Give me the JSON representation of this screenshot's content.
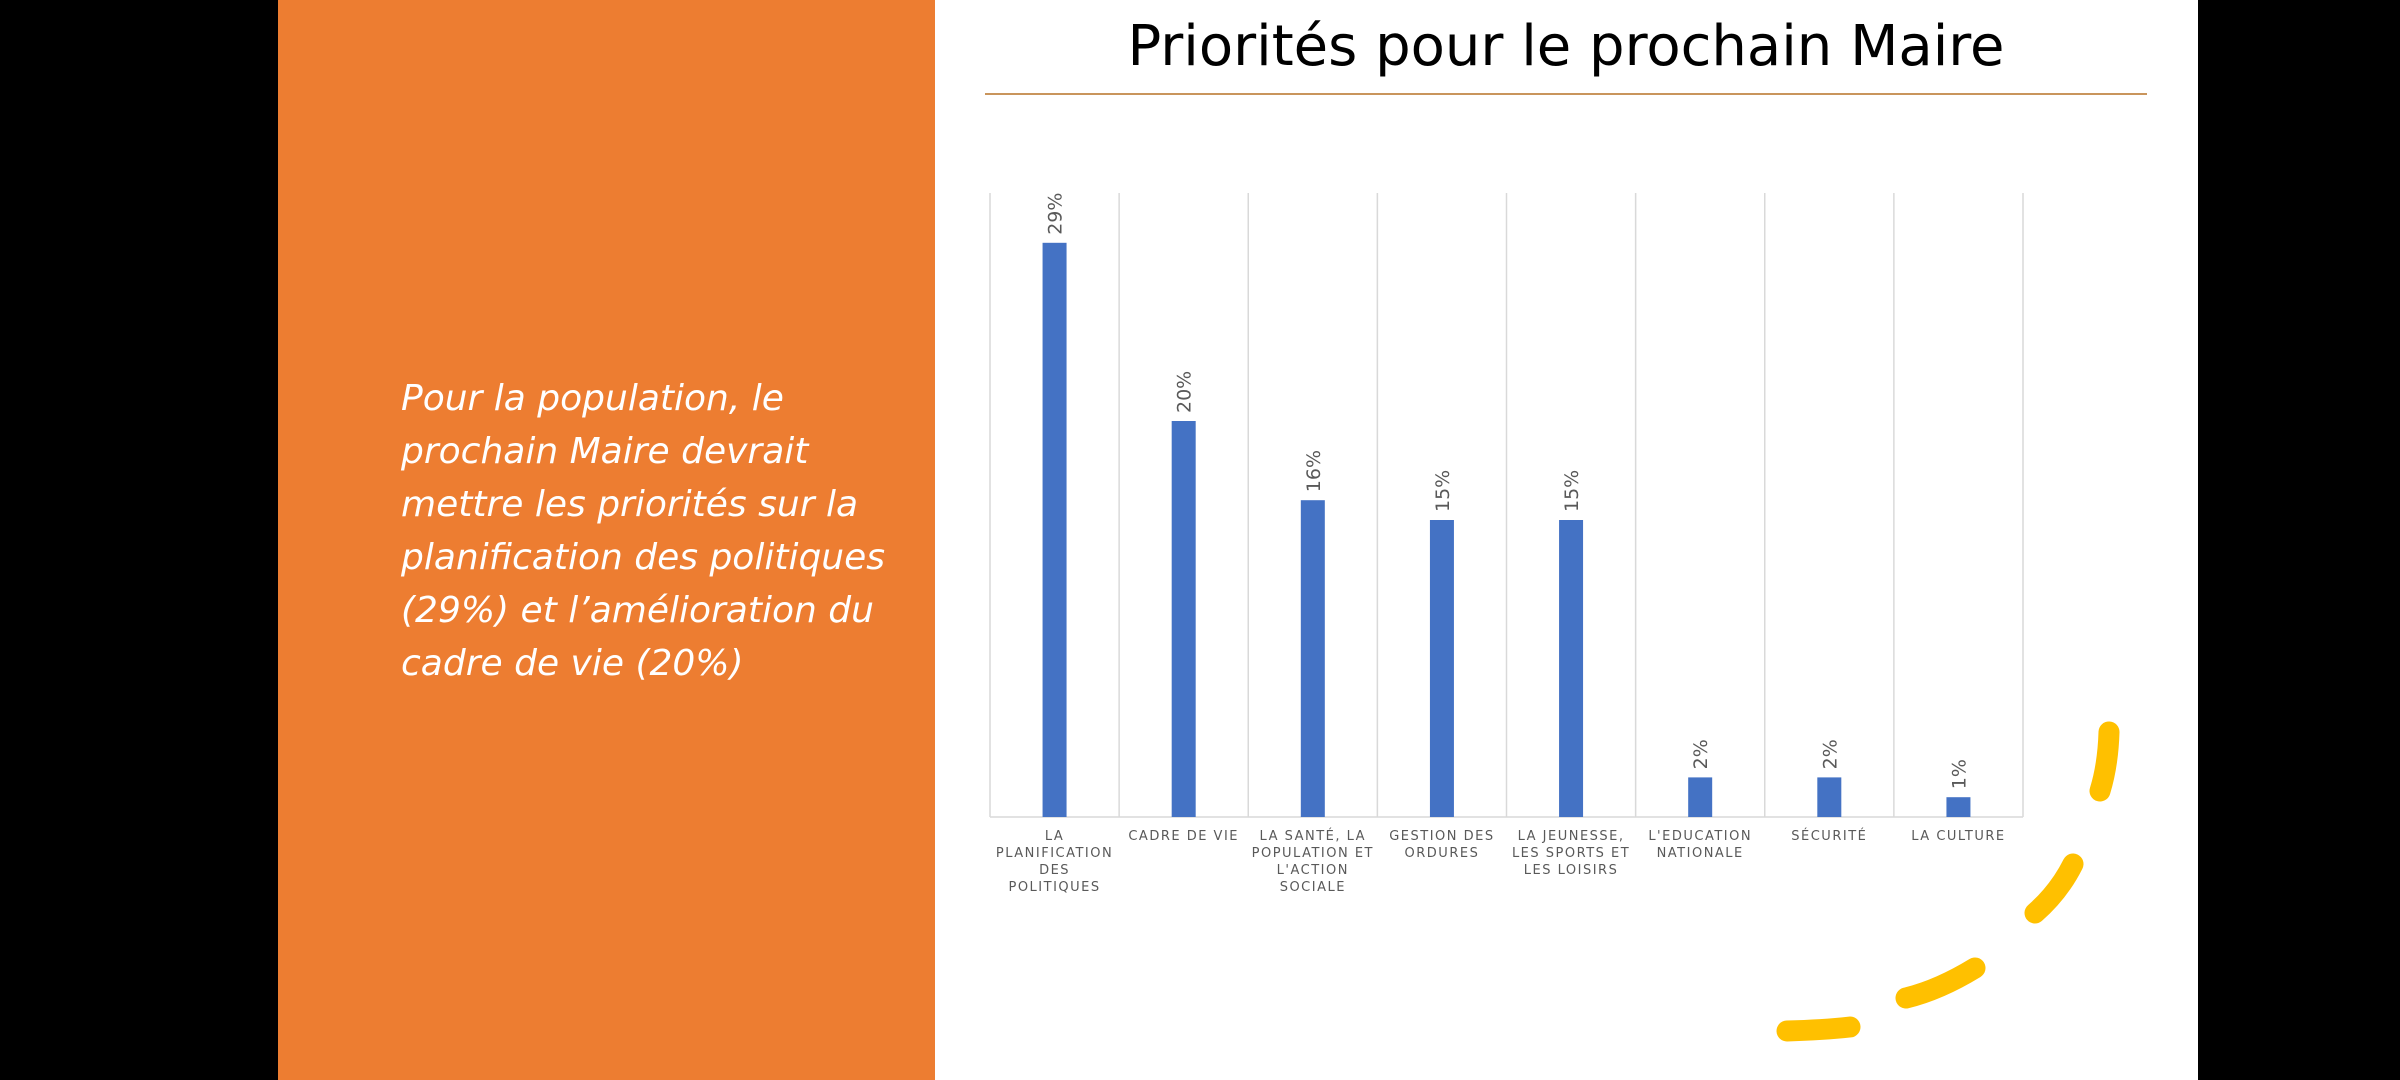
{
  "slide": {
    "title": "Priorités pour le prochain Maire",
    "summary": "Pour la population, le prochain Maire devrait mettre les priorités sur la planification des politiques (29%) et l’amélioration du cadre de vie (20%)",
    "accent_color": "#ED7D31",
    "bar_color": "#4472C4",
    "decoration_color": "#FFC000"
  },
  "chart_data": {
    "type": "bar",
    "title": "",
    "xlabel": "",
    "ylabel": "",
    "ylim": [
      0,
      30
    ],
    "grid": "vertical category separators",
    "legend": "none",
    "categories": [
      "LA PLANIFICATION DES POLITIQUES",
      "CADRE DE VIE",
      "LA SANTÉ, LA POPULATION ET L'ACTION SOCIALE",
      "GESTION DES ORDURES",
      "LA JEUNESSE, LES SPORTS ET LES LOISIRS",
      "L'EDUCATION NATIONALE",
      "SÉCURITÉ",
      "LA CULTURE"
    ],
    "values": [
      29,
      20,
      16,
      15,
      15,
      2,
      2,
      1
    ],
    "data_labels": [
      "29%",
      "20%",
      "16%",
      "15%",
      "15%",
      "2%",
      "2%",
      "1%"
    ]
  }
}
